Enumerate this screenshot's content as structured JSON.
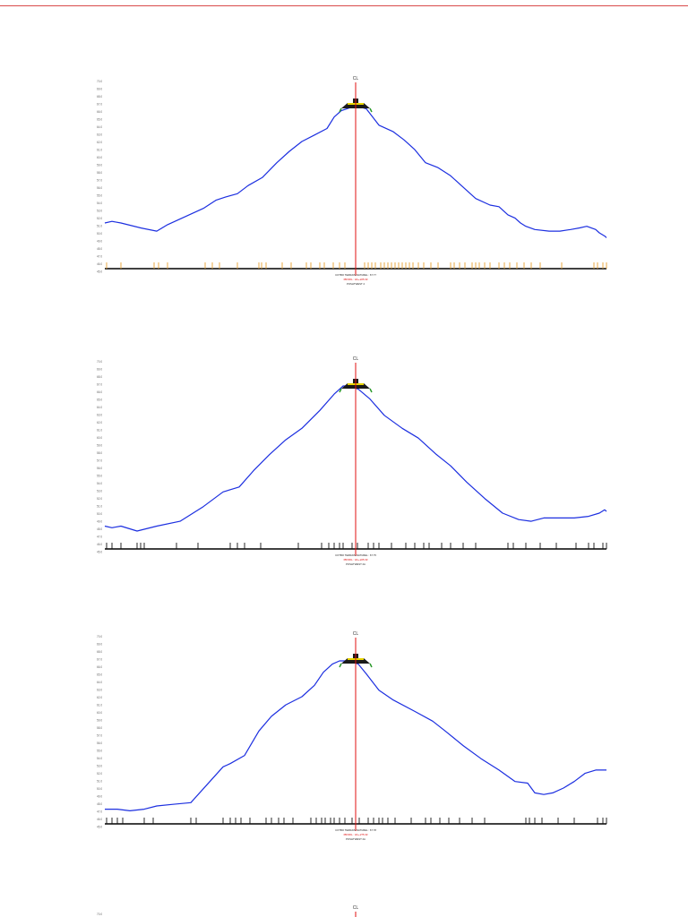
{
  "page": {
    "rule_color": "#d94a4a"
  },
  "colors": {
    "ground": "#1c2fe0",
    "centerline": "#e01010",
    "tick_orange": "#e8a030",
    "tick_black": "#111111",
    "road": "#1a1a1a",
    "road_yellow": "#e8d400",
    "slope_green": "#2a9a2a",
    "baseline": "#000000"
  },
  "chart_data": [
    {
      "type": "line",
      "name": "cross-section-1",
      "centerline_label": "CL",
      "xlim": [
        0,
        560
      ],
      "ylim": [
        0,
        1
      ],
      "y_tick_labels": [
        "45.0",
        "46.0",
        "47.0",
        "48.0",
        "49.0",
        "50.0",
        "51.0",
        "52.0",
        "53.0",
        "54.0",
        "55.0",
        "56.0",
        "57.0",
        "58.0",
        "59.0",
        "60.0",
        "61.0",
        "62.0",
        "63.0",
        "64.0",
        "65.0",
        "66.0",
        "67.0",
        "68.0",
        "69.0",
        "70.0"
      ],
      "ground": {
        "x": [
          0,
          8,
          18,
          40,
          58,
          70,
          90,
          110,
          124,
          135,
          148,
          160,
          176,
          192,
          206,
          220,
          234,
          248,
          256,
          264,
          270,
          275,
          280,
          292,
          306,
          322,
          334,
          346,
          358,
          372,
          386,
          398,
          414,
          430,
          440,
          450,
          458,
          464,
          470,
          480,
          496,
          508,
          520,
          530,
          538,
          548,
          552,
          558,
          560
        ],
        "y": [
          0.28,
          0.29,
          0.28,
          0.25,
          0.23,
          0.27,
          0.32,
          0.37,
          0.42,
          0.44,
          0.46,
          0.51,
          0.56,
          0.65,
          0.72,
          0.78,
          0.82,
          0.86,
          0.93,
          0.97,
          0.98,
          0.99,
          1.0,
          0.98,
          0.88,
          0.84,
          0.79,
          0.73,
          0.65,
          0.62,
          0.57,
          0.51,
          0.43,
          0.39,
          0.38,
          0.33,
          0.31,
          0.28,
          0.26,
          0.24,
          0.23,
          0.23,
          0.24,
          0.25,
          0.26,
          0.24,
          0.22,
          0.2,
          0.19
        ]
      },
      "station_ticks": {
        "color": "orange",
        "x": [
          2,
          18,
          55,
          60,
          70,
          112,
          120,
          128,
          148,
          172,
          175,
          180,
          198,
          208,
          225,
          230,
          240,
          245,
          255,
          262,
          268,
          290,
          294,
          298,
          302,
          308,
          312,
          316,
          320,
          324,
          328,
          332,
          336,
          340,
          344,
          350,
          356,
          364,
          372,
          386,
          390,
          396,
          402,
          410,
          414,
          418,
          424,
          430,
          440,
          446,
          452,
          460,
          468,
          476,
          486,
          510,
          546,
          550,
          556,
          560
        ]
      },
      "labels": {
        "line1": "COTBO TERRAIN NATUREL : 67.77",
        "line2": "PROFIL : 3A+-225.33",
        "line3": "POSHTWEST 2"
      }
    },
    {
      "type": "line",
      "name": "cross-section-2",
      "centerline_label": "CL",
      "xlim": [
        0,
        560
      ],
      "ylim": [
        0,
        1
      ],
      "y_tick_labels": [
        "45.0",
        "46.0",
        "47.0",
        "48.0",
        "49.0",
        "50.0",
        "51.0",
        "52.0",
        "53.0",
        "54.0",
        "55.0",
        "56.0",
        "57.0",
        "58.0",
        "59.0",
        "60.0",
        "61.0",
        "62.0",
        "63.0",
        "64.0",
        "65.0",
        "66.0",
        "67.0",
        "68.0",
        "69.0",
        "70.0"
      ],
      "ground": {
        "x": [
          0,
          8,
          18,
          36,
          58,
          84,
          110,
          132,
          150,
          166,
          184,
          202,
          220,
          240,
          256,
          266,
          272,
          278,
          283,
          296,
          312,
          332,
          350,
          370,
          386,
          404,
          424,
          444,
          462,
          476,
          490,
          506,
          524,
          540,
          552,
          558,
          560
        ],
        "y": [
          0.14,
          0.13,
          0.14,
          0.11,
          0.14,
          0.17,
          0.26,
          0.35,
          0.38,
          0.48,
          0.58,
          0.67,
          0.74,
          0.85,
          0.95,
          1.0,
          1.0,
          0.99,
          0.98,
          0.92,
          0.82,
          0.74,
          0.68,
          0.58,
          0.51,
          0.41,
          0.31,
          0.22,
          0.18,
          0.17,
          0.19,
          0.19,
          0.19,
          0.2,
          0.22,
          0.24,
          0.23
        ]
      },
      "station_ticks": {
        "color": "black",
        "x": [
          2,
          8,
          18,
          36,
          40,
          44,
          80,
          104,
          140,
          148,
          156,
          174,
          216,
          242,
          250,
          256,
          262,
          266,
          276,
          280,
          282,
          294,
          300,
          306,
          320,
          336,
          346,
          356,
          362,
          376,
          386,
          400,
          414,
          450,
          456,
          470,
          486,
          504,
          526,
          540,
          546,
          556,
          560
        ]
      },
      "labels": {
        "line1": "COTBO TERRAIN NATUREL : 67.75",
        "line2": "PROFIL : 3A+-225.33",
        "line3": "POSHTWEST 2A"
      }
    },
    {
      "type": "line",
      "name": "cross-section-3",
      "centerline_label": "CL",
      "xlim": [
        0,
        560
      ],
      "ylim": [
        0,
        1
      ],
      "y_tick_labels": [
        "45.0",
        "46.0",
        "47.0",
        "48.0",
        "49.0",
        "50.0",
        "51.0",
        "52.0",
        "53.0",
        "54.0",
        "55.0",
        "56.0",
        "57.0",
        "58.0",
        "59.0",
        "60.0",
        "61.0",
        "62.0",
        "63.0",
        "64.0",
        "65.0",
        "66.0",
        "67.0",
        "68.0",
        "69.0",
        "70.0"
      ],
      "ground": {
        "x": [
          0,
          14,
          28,
          44,
          58,
          76,
          96,
          114,
          132,
          140,
          156,
          172,
          186,
          202,
          220,
          234,
          244,
          254,
          262,
          270,
          278,
          283,
          292,
          306,
          322,
          346,
          366,
          380,
          400,
          420,
          440,
          458,
          472,
          480,
          490,
          500,
          512,
          524,
          536,
          548,
          560
        ],
        "y": [
          0.09,
          0.09,
          0.08,
          0.09,
          0.11,
          0.12,
          0.13,
          0.24,
          0.35,
          0.37,
          0.42,
          0.57,
          0.66,
          0.73,
          0.78,
          0.85,
          0.93,
          0.98,
          1.0,
          1.0,
          0.99,
          0.98,
          0.92,
          0.82,
          0.76,
          0.69,
          0.63,
          0.57,
          0.48,
          0.4,
          0.33,
          0.26,
          0.25,
          0.19,
          0.18,
          0.19,
          0.22,
          0.26,
          0.31,
          0.33,
          0.33
        ]
      },
      "station_ticks": {
        "color": "black",
        "x": [
          2,
          8,
          14,
          20,
          44,
          54,
          96,
          102,
          132,
          140,
          146,
          152,
          162,
          180,
          186,
          194,
          200,
          210,
          230,
          236,
          242,
          246,
          252,
          256,
          262,
          268,
          276,
          280,
          284,
          294,
          300,
          306,
          310,
          316,
          324,
          342,
          358,
          364,
          374,
          384,
          396,
          410,
          424,
          470,
          474,
          480,
          488,
          506,
          524,
          550,
          556,
          560
        ]
      },
      "labels": {
        "line1": "COTBO TERRAIN NATUREL : 67.78",
        "line2": "PROFIL : 3A+-275.33",
        "line3": "POSHTWEST 2A"
      }
    },
    {
      "type": "line",
      "name": "cross-section-4-partial",
      "centerline_label": "CL",
      "y_tick_labels": [
        "70.0"
      ]
    }
  ]
}
